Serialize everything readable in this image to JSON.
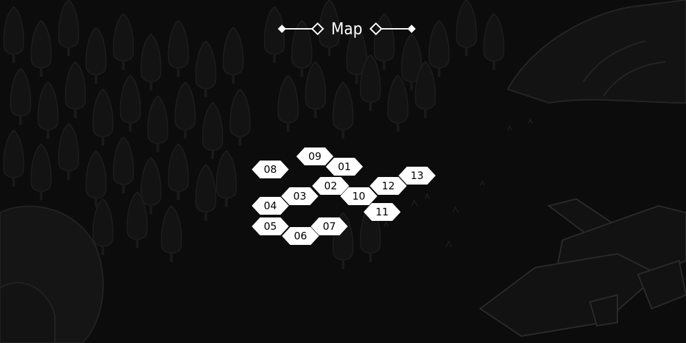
{
  "header": {
    "title": "Map"
  },
  "levels": [
    {
      "id": "09"
    },
    {
      "id": "01"
    },
    {
      "id": "08"
    },
    {
      "id": "02"
    },
    {
      "id": "12"
    },
    {
      "id": "13"
    },
    {
      "id": "03"
    },
    {
      "id": "10"
    },
    {
      "id": "04"
    },
    {
      "id": "11"
    },
    {
      "id": "05"
    },
    {
      "id": "07"
    },
    {
      "id": "06"
    }
  ],
  "colors": {
    "background": "#0b0b0b",
    "node_fill": "#ffffff",
    "node_text": "#000000",
    "title": "#ffffff"
  },
  "icons": {
    "title_ornament": "diamond-line-ornament-icon",
    "node_shape": "hexagon-icon"
  }
}
